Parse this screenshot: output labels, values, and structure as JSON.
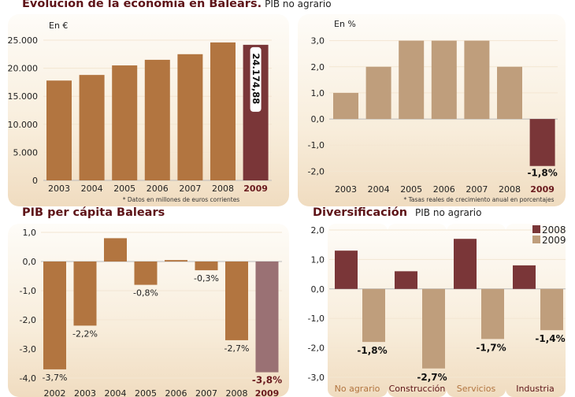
{
  "titles": {
    "main": "Evolución de la economía en Balears.",
    "main_sub": "PIB no agrario",
    "percapita": "PIB per cápita Balears",
    "divers": "Diversificación",
    "divers_sub": "PIB no agrario"
  },
  "colors": {
    "bar_orange": "#b27540",
    "bar_dark": "#7a3638",
    "bar_tan": "#bf9e7c",
    "bar_mauve": "#9a7174",
    "title": "#5e1418"
  },
  "chart_data": [
    {
      "id": "pib",
      "type": "bar",
      "unit_label": "En €",
      "note": "* Datos en millones de euros corrientes",
      "categories": [
        "2003",
        "2004",
        "2005",
        "2006",
        "2007",
        "2008",
        "2009"
      ],
      "values": [
        17800,
        18800,
        20500,
        21500,
        22500,
        24600,
        24174.88
      ],
      "highlight_index": 6,
      "highlight_label": "24.174,88",
      "ylim": [
        0,
        25000
      ],
      "yticks": [
        0,
        5000,
        10000,
        15000,
        20000,
        25000
      ],
      "ytick_labels": [
        "0",
        "5.000",
        "10.000",
        "15.000",
        "20.000",
        "25.000"
      ],
      "grid": true
    },
    {
      "id": "growth",
      "type": "bar",
      "unit_label": "En %",
      "note": "* Tasas reales de crecimiento anual en porcentajes",
      "categories": [
        "2003",
        "2004",
        "2005",
        "2006",
        "2007",
        "2008",
        "2009"
      ],
      "values": [
        1.0,
        2.0,
        3.0,
        3.0,
        3.0,
        2.0,
        -1.8
      ],
      "highlight_index": 6,
      "highlight_label": "-1,8%",
      "ylim": [
        -2.2,
        3.2
      ],
      "yticks": [
        -2,
        -1,
        0,
        1,
        2,
        3
      ],
      "ytick_labels": [
        "-2,0",
        "-1,0",
        "0,0",
        "1,0",
        "2,0",
        "3,0"
      ],
      "grid": true
    },
    {
      "id": "percapita",
      "type": "bar",
      "categories": [
        "2002",
        "2003",
        "2004",
        "2005",
        "2006",
        "2007",
        "2008",
        "2009"
      ],
      "values": [
        -3.7,
        -2.2,
        0.8,
        -0.8,
        0.05,
        -0.3,
        -2.7,
        -3.8
      ],
      "data_labels": [
        "-3,7%",
        "-2,2%",
        "",
        "-0,8%",
        "",
        "-0,3%",
        "-2,7%",
        "-3,8%"
      ],
      "highlight_index": 7,
      "ylim": [
        -4.0,
        1.0
      ],
      "yticks": [
        -4,
        -3,
        -2,
        -1,
        0,
        1
      ],
      "ytick_labels": [
        "-4,0",
        "-3,0",
        "-2,0",
        "-1,0",
        "0,0",
        "1,0"
      ],
      "grid": true
    },
    {
      "id": "divers",
      "type": "bar",
      "categories": [
        "No agrario",
        "Construcción",
        "Servicios",
        "Industria"
      ],
      "series": [
        {
          "name": "2008",
          "values": [
            1.3,
            0.6,
            1.7,
            0.8
          ]
        },
        {
          "name": "2009",
          "values": [
            -1.8,
            -2.7,
            -1.7,
            -1.4
          ]
        }
      ],
      "data_labels_2009": [
        "-1,8%",
        "-2,7%",
        "-1,7%",
        "-1,4%"
      ],
      "ylim": [
        -3.0,
        2.0
      ],
      "yticks": [
        -3,
        -2,
        -1,
        0,
        1,
        2
      ],
      "ytick_labels": [
        "-3,0",
        "-2,0",
        "-1,0",
        "0,0",
        "1,0",
        "2,0"
      ],
      "legend": "top-right",
      "grid": true
    }
  ]
}
